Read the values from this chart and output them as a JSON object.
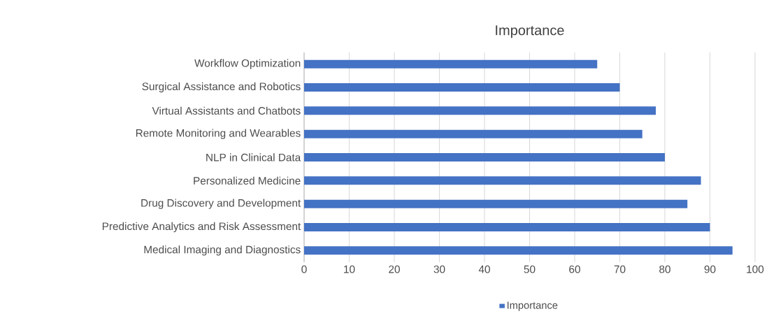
{
  "chart_data": {
    "type": "bar",
    "orientation": "horizontal",
    "title": "Importance",
    "categories": [
      "Workflow Optimization",
      "Surgical Assistance and Robotics",
      "Virtual Assistants and Chatbots",
      "Remote Monitoring and Wearables",
      "NLP in Clinical Data",
      "Personalized Medicine",
      "Drug Discovery and Development",
      "Predictive Analytics and Risk Assessment",
      "Medical Imaging and Diagnostics"
    ],
    "series": [
      {
        "name": "Importance",
        "color": "#4472c4",
        "values": [
          65,
          70,
          78,
          75,
          80,
          88,
          85,
          90,
          95
        ]
      }
    ],
    "xlim": [
      0,
      100
    ],
    "xticks": [
      0,
      10,
      20,
      30,
      40,
      50,
      60,
      70,
      80,
      90,
      100
    ],
    "grid": "x",
    "legend": "bottom"
  }
}
